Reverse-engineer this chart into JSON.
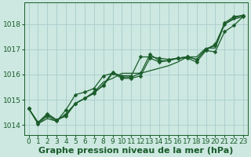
{
  "background_color": "#cce8e0",
  "grid_color": "#aacccc",
  "line_color": "#1a5c2a",
  "text_color": "#1a5c2a",
  "xlabel": "Graphe pression niveau de la mer (hPa)",
  "xlim": [
    -0.5,
    23.5
  ],
  "ylim": [
    1013.6,
    1018.85
  ],
  "yticks": [
    1014,
    1015,
    1016,
    1017,
    1018
  ],
  "xticks": [
    0,
    1,
    2,
    3,
    4,
    5,
    6,
    7,
    8,
    9,
    10,
    11,
    12,
    13,
    14,
    15,
    16,
    17,
    18,
    19,
    20,
    21,
    22,
    23
  ],
  "series": [
    {
      "y": [
        1014.65,
        1014.1,
        1014.45,
        1014.2,
        1014.4,
        1014.85,
        1015.05,
        1015.3,
        1015.55,
        1016.05,
        1015.85,
        1015.85,
        1015.95,
        1016.65,
        1016.5,
        1016.55,
        1016.65,
        1016.7,
        1016.6,
        1017.0,
        1017.15,
        1018.05,
        1018.3,
        1018.35
      ],
      "linestyle": "-",
      "marker": true
    },
    {
      "y": [
        1014.65,
        1014.1,
        1014.4,
        1014.2,
        1014.35,
        1014.85,
        1015.05,
        1015.25,
        1015.6,
        1016.1,
        1015.9,
        1015.9,
        1016.05,
        1016.8,
        1016.55,
        1016.55,
        1016.65,
        1016.7,
        1016.6,
        1017.0,
        1017.2,
        1018.0,
        1018.25,
        1018.35
      ],
      "linestyle": "-",
      "marker": true
    },
    {
      "y": [
        1014.65,
        1014.05,
        1014.35,
        1014.15,
        1014.6,
        1015.2,
        1015.3,
        1015.45,
        1015.95,
        1016.05,
        1015.95,
        1015.95,
        1016.7,
        1016.7,
        1016.65,
        1016.6,
        1016.65,
        1016.65,
        1016.5,
        1016.95,
        1016.9,
        1017.7,
        1017.95,
        1018.3
      ],
      "linestyle": "-",
      "marker": true
    },
    {
      "y": [
        1014.65,
        1014.05,
        1014.25,
        1014.15,
        1014.45,
        1014.85,
        1015.05,
        1015.3,
        1015.7,
        1015.85,
        1016.05,
        1016.05,
        1016.05,
        1016.15,
        1016.25,
        1016.35,
        1016.5,
        1016.7,
        1016.7,
        1017.05,
        1017.05,
        1018.0,
        1018.2,
        1018.3
      ],
      "linestyle": "-",
      "marker": false
    }
  ],
  "marker_symbol": "D",
  "marker_size": 2.5,
  "line_width": 0.9,
  "xlabel_fontsize": 8,
  "tick_fontsize": 6.5,
  "figsize": [
    3.2,
    2.0
  ],
  "dpi": 100
}
